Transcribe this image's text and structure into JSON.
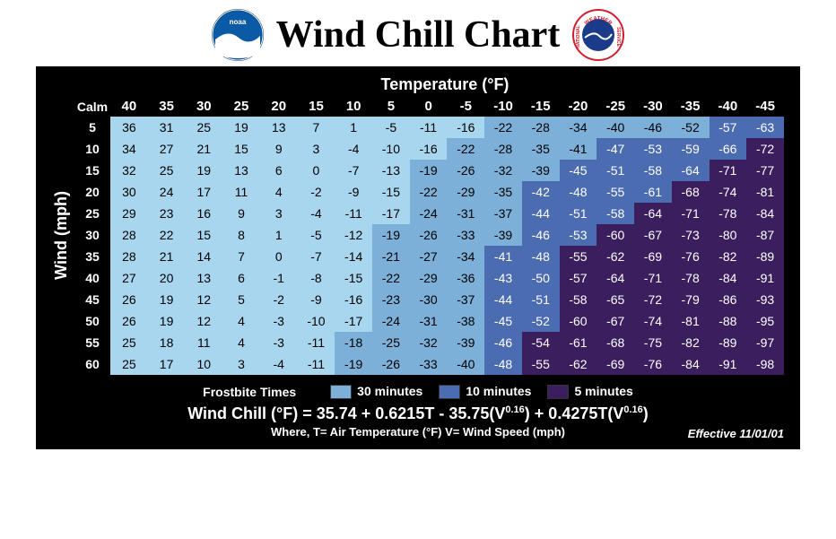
{
  "title": "Wind Chill Chart",
  "logos": {
    "noaa_label": "noaa",
    "nws_top": "WEATHER",
    "nws_left": "NATIONAL",
    "nws_right": "SERVICE"
  },
  "colors": {
    "none": "#a9d6ef",
    "z30": "#7db0d9",
    "z10": "#4b6cb0",
    "z5": "#3a1e5e",
    "bg": "#000000",
    "text_light": "#ffffff"
  },
  "temp_title": "Temperature (°F)",
  "wind_title": "Wind (mph)",
  "corner_label": "Calm",
  "temp_headers": [
    40,
    35,
    30,
    25,
    20,
    15,
    10,
    5,
    0,
    -5,
    -10,
    -15,
    -20,
    -25,
    -30,
    -35,
    -40,
    -45
  ],
  "wind_headers": [
    5,
    10,
    15,
    20,
    25,
    30,
    35,
    40,
    45,
    50,
    55,
    60
  ],
  "values": [
    [
      36,
      31,
      25,
      19,
      13,
      7,
      1,
      -5,
      -11,
      -16,
      -22,
      -28,
      -34,
      -40,
      -46,
      -52,
      -57,
      -63
    ],
    [
      34,
      27,
      21,
      15,
      9,
      3,
      -4,
      -10,
      -16,
      -22,
      -28,
      -35,
      -41,
      -47,
      -53,
      -59,
      -66,
      -72
    ],
    [
      32,
      25,
      19,
      13,
      6,
      0,
      -7,
      -13,
      -19,
      -26,
      -32,
      -39,
      -45,
      -51,
      -58,
      -64,
      -71,
      -77
    ],
    [
      30,
      24,
      17,
      11,
      4,
      -2,
      -9,
      -15,
      -22,
      -29,
      -35,
      -42,
      -48,
      -55,
      -61,
      -68,
      -74,
      -81
    ],
    [
      29,
      23,
      16,
      9,
      3,
      -4,
      -11,
      -17,
      -24,
      -31,
      -37,
      -44,
      -51,
      -58,
      -64,
      -71,
      -78,
      -84
    ],
    [
      28,
      22,
      15,
      8,
      1,
      -5,
      -12,
      -19,
      -26,
      -33,
      -39,
      -46,
      -53,
      -60,
      -67,
      -73,
      -80,
      -87
    ],
    [
      28,
      21,
      14,
      7,
      0,
      -7,
      -14,
      -21,
      -27,
      -34,
      -41,
      -48,
      -55,
      -62,
      -69,
      -76,
      -82,
      -89
    ],
    [
      27,
      20,
      13,
      6,
      -1,
      -8,
      -15,
      -22,
      -29,
      -36,
      -43,
      -50,
      -57,
      -64,
      -71,
      -78,
      -84,
      -91
    ],
    [
      26,
      19,
      12,
      5,
      -2,
      -9,
      -16,
      -23,
      -30,
      -37,
      -44,
      -51,
      -58,
      -65,
      -72,
      -79,
      -86,
      -93
    ],
    [
      26,
      19,
      12,
      4,
      -3,
      -10,
      -17,
      -24,
      -31,
      -38,
      -45,
      -52,
      -60,
      -67,
      -74,
      -81,
      -88,
      -95
    ],
    [
      25,
      18,
      11,
      4,
      -3,
      -11,
      -18,
      -25,
      -32,
      -39,
      -46,
      -54,
      -61,
      -68,
      -75,
      -82,
      -89,
      -97
    ],
    [
      25,
      17,
      10,
      3,
      -4,
      -11,
      -19,
      -26,
      -33,
      -40,
      -48,
      -55,
      -62,
      -69,
      -76,
      -84,
      -91,
      -98
    ]
  ],
  "zones": [
    [
      "none",
      "none",
      "none",
      "none",
      "none",
      "none",
      "none",
      "none",
      "none",
      "none",
      "z30",
      "z30",
      "z30",
      "z30",
      "z30",
      "z30",
      "z10",
      "z10"
    ],
    [
      "none",
      "none",
      "none",
      "none",
      "none",
      "none",
      "none",
      "none",
      "none",
      "z30",
      "z30",
      "z30",
      "z30",
      "z10",
      "z10",
      "z10",
      "z10",
      "z5"
    ],
    [
      "none",
      "none",
      "none",
      "none",
      "none",
      "none",
      "none",
      "none",
      "z30",
      "z30",
      "z30",
      "z30",
      "z10",
      "z10",
      "z10",
      "z10",
      "z5",
      "z5"
    ],
    [
      "none",
      "none",
      "none",
      "none",
      "none",
      "none",
      "none",
      "none",
      "z30",
      "z30",
      "z30",
      "z10",
      "z10",
      "z10",
      "z10",
      "z5",
      "z5",
      "z5"
    ],
    [
      "none",
      "none",
      "none",
      "none",
      "none",
      "none",
      "none",
      "none",
      "z30",
      "z30",
      "z30",
      "z10",
      "z10",
      "z10",
      "z5",
      "z5",
      "z5",
      "z5"
    ],
    [
      "none",
      "none",
      "none",
      "none",
      "none",
      "none",
      "none",
      "z30",
      "z30",
      "z30",
      "z30",
      "z10",
      "z10",
      "z5",
      "z5",
      "z5",
      "z5",
      "z5"
    ],
    [
      "none",
      "none",
      "none",
      "none",
      "none",
      "none",
      "none",
      "z30",
      "z30",
      "z30",
      "z10",
      "z10",
      "z5",
      "z5",
      "z5",
      "z5",
      "z5",
      "z5"
    ],
    [
      "none",
      "none",
      "none",
      "none",
      "none",
      "none",
      "none",
      "z30",
      "z30",
      "z30",
      "z10",
      "z10",
      "z5",
      "z5",
      "z5",
      "z5",
      "z5",
      "z5"
    ],
    [
      "none",
      "none",
      "none",
      "none",
      "none",
      "none",
      "none",
      "z30",
      "z30",
      "z30",
      "z10",
      "z10",
      "z5",
      "z5",
      "z5",
      "z5",
      "z5",
      "z5"
    ],
    [
      "none",
      "none",
      "none",
      "none",
      "none",
      "none",
      "none",
      "z30",
      "z30",
      "z30",
      "z10",
      "z10",
      "z5",
      "z5",
      "z5",
      "z5",
      "z5",
      "z5"
    ],
    [
      "none",
      "none",
      "none",
      "none",
      "none",
      "none",
      "z30",
      "z30",
      "z30",
      "z30",
      "z10",
      "z5",
      "z5",
      "z5",
      "z5",
      "z5",
      "z5",
      "z5"
    ],
    [
      "none",
      "none",
      "none",
      "none",
      "none",
      "none",
      "z30",
      "z30",
      "z30",
      "z30",
      "z10",
      "z5",
      "z5",
      "z5",
      "z5",
      "z5",
      "z5",
      "z5"
    ]
  ],
  "legend": {
    "title": "Frostbite Times",
    "items": [
      {
        "label": "30 minutes",
        "key": "z30"
      },
      {
        "label": "10 minutes",
        "key": "z10"
      },
      {
        "label": "5 minutes",
        "key": "z5"
      }
    ]
  },
  "formula": {
    "prefix": "Wind Chill (°F) = 35.74 + 0.6215T - 35.75(V",
    "exp1": "0.16",
    "mid": ") + 0.4275T(V",
    "exp2": "0.16",
    "suffix": ")"
  },
  "where": "Where, T= Air Temperature (°F)   V= Wind Speed (mph)",
  "effective": "Effective 11/01/01"
}
